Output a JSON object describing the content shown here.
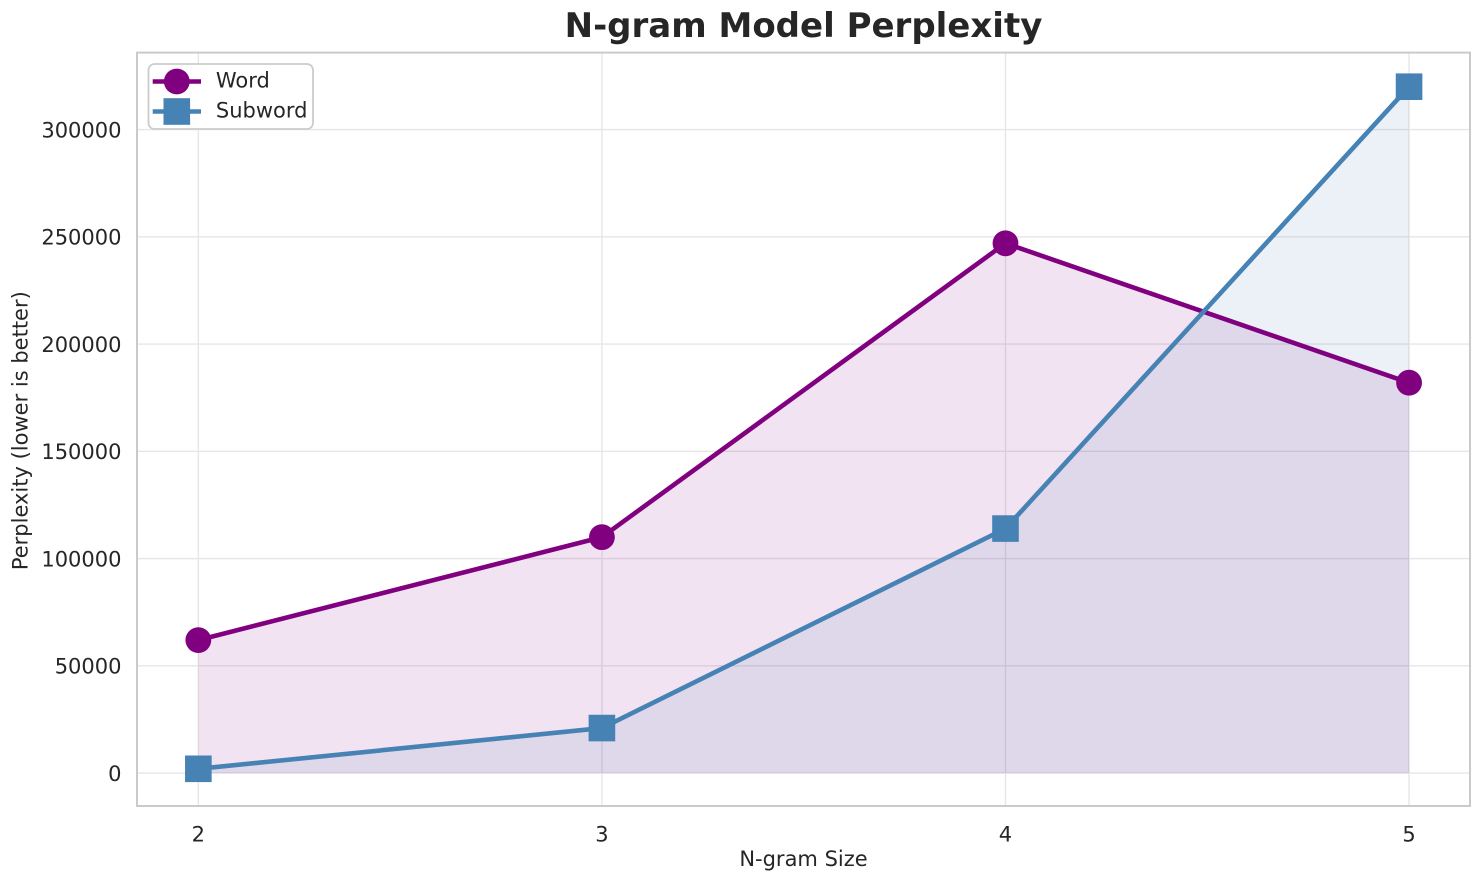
{
  "chart_data": {
    "type": "line",
    "title": "N-gram Model Perplexity",
    "xlabel": "N-gram Size",
    "ylabel": "Perplexity (lower is better)",
    "x": [
      2,
      3,
      4,
      5
    ],
    "series": [
      {
        "name": "Word",
        "values": [
          62000,
          110000,
          247000,
          182000
        ],
        "color": "#800080",
        "marker": "circle"
      },
      {
        "name": "Subword",
        "values": [
          2000,
          21000,
          114000,
          320000
        ],
        "color": "#4682B4",
        "marker": "square"
      }
    ],
    "area_fill": true,
    "fill_alpha": 0.11,
    "fill_baseline": 0,
    "xticks": [
      2,
      3,
      4,
      5
    ],
    "yticks": [
      0,
      50000,
      100000,
      150000,
      200000,
      250000,
      300000
    ],
    "xlim": [
      1.848,
      5.151
    ],
    "ylim": [
      -15340,
      335900
    ],
    "grid": true,
    "legend": {
      "position": "upper left",
      "entries": [
        "Word",
        "Subword"
      ]
    }
  },
  "colors": {
    "background": "#ffffff",
    "text": "#262626",
    "grid": "#e6e6e6",
    "spine": "#c8c8c8",
    "legend_border": "#cccccc",
    "legend_background": "#ffffff"
  }
}
